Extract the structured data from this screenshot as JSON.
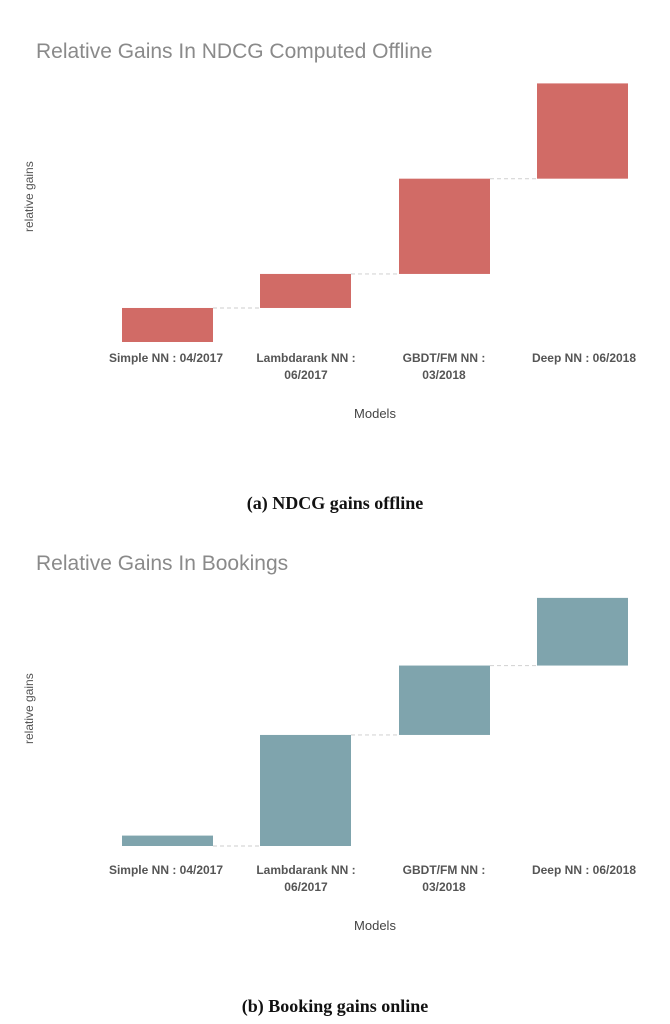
{
  "colors": {
    "offline_bar": "#d16b66",
    "online_bar": "#7fa4ad",
    "connector": "#d6d6d6"
  },
  "chart_data": [
    {
      "type": "bar",
      "subtype": "waterfall",
      "title": "Relative Gains In NDCG Computed Offline",
      "xlabel": "Models",
      "ylabel": "relative gains",
      "categories": [
        "Simple NN : 04/2017",
        "Lambdarank NN : 06/2017",
        "GBDT/FM NN : 03/2018",
        "Deep NN : 06/2018"
      ],
      "category_lines": [
        [
          "Simple NN : 04/2017"
        ],
        [
          "Lambdarank NN :",
          "06/2017"
        ],
        [
          "GBDT/FM NN :",
          "03/2018"
        ],
        [
          "Deep NN : 06/2018"
        ]
      ],
      "values": [
        1.0,
        1.0,
        2.8,
        2.8
      ],
      "base": 0,
      "ylim": [
        0,
        7.7
      ],
      "grid": false,
      "legend": "none",
      "caption": "(a) NDCG gains offline"
    },
    {
      "type": "bar",
      "subtype": "waterfall",
      "title": "Relative Gains In Bookings",
      "xlabel": "Models",
      "ylabel": "relative gains",
      "categories": [
        "Simple NN : 04/2017",
        "Lambdarank NN : 06/2017",
        "GBDT/FM NN : 03/2018",
        "Deep NN : 06/2018"
      ],
      "category_lines": [
        [
          "Simple NN : 04/2017"
        ],
        [
          "Lambdarank NN :",
          "06/2017"
        ],
        [
          "GBDT/FM NN :",
          "03/2018"
        ],
        [
          "Deep NN : 06/2018"
        ]
      ],
      "values": [
        -0.3,
        3.2,
        2.0,
        1.95
      ],
      "base": 0,
      "ylim": [
        -0.3,
        7.25
      ],
      "grid": false,
      "legend": "none",
      "caption": "(b) Booking gains online"
    }
  ]
}
